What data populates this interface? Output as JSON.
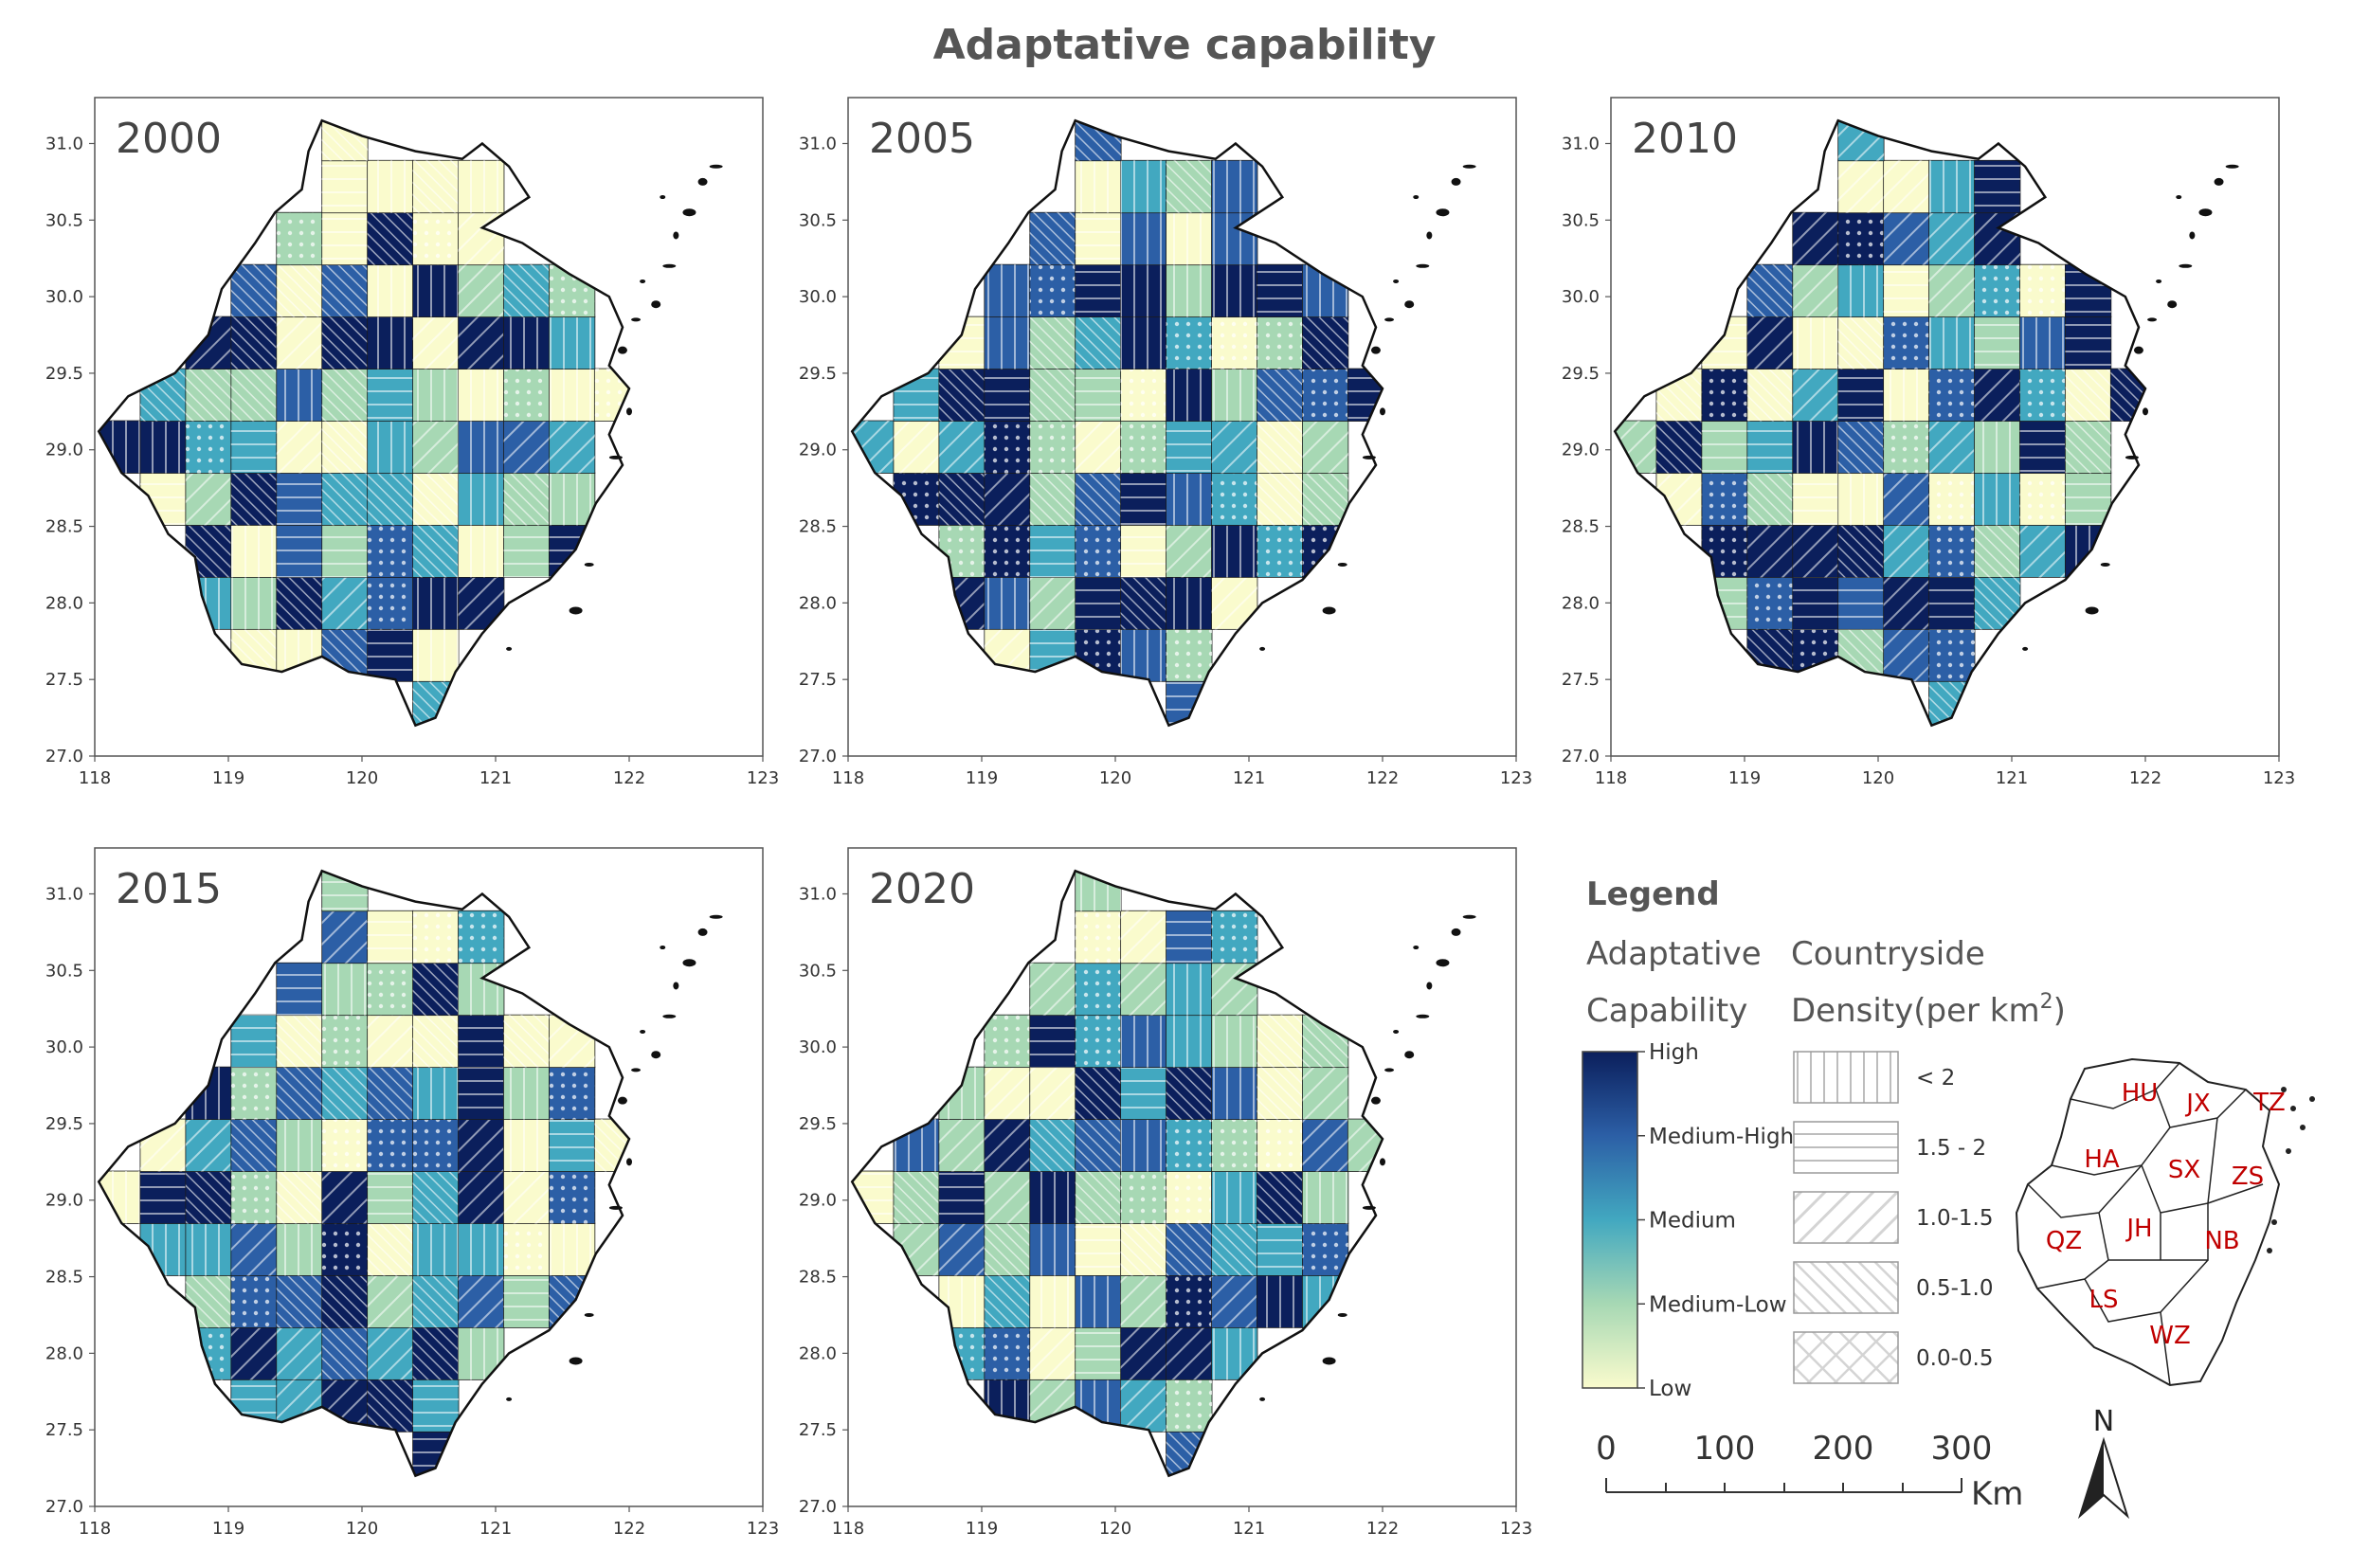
{
  "title": "Adaptative capability",
  "panels": [
    {
      "year": "2000",
      "seed": 11
    },
    {
      "year": "2005",
      "seed": 23
    },
    {
      "year": "2010",
      "seed": 37
    },
    {
      "year": "2015",
      "seed": 53
    },
    {
      "year": "2020",
      "seed": 71
    }
  ],
  "axes": {
    "x_ticks": [
      "118",
      "119",
      "120",
      "121",
      "122",
      "123"
    ],
    "y_ticks": [
      "31.0",
      "30.5",
      "30.0",
      "29.5",
      "29.0",
      "28.5",
      "28.0",
      "27.5",
      "27.0"
    ],
    "xlim": [
      118,
      123
    ],
    "ylim": [
      27.0,
      31.3
    ]
  },
  "legend": {
    "title": "Legend",
    "capability_heading": [
      "Adaptative",
      "Capability"
    ],
    "density_heading": [
      "Countryside",
      "Density(per km",
      "2",
      ")"
    ],
    "colorbar_labels": [
      "High",
      "Medium-High",
      "Medium",
      "Medium-Low",
      "Low"
    ],
    "colors": [
      "#0b1f5c",
      "#2c5fa6",
      "#42a8c0",
      "#a7d8b4",
      "#fafbcd"
    ],
    "density_classes": [
      {
        "label": "< 2",
        "pattern": "vertical"
      },
      {
        "label": "1.5 - 2",
        "pattern": "horizontal"
      },
      {
        "label": "1.0-1.5",
        "pattern": "diag-wide"
      },
      {
        "label": "0.5-1.0",
        "pattern": "diag-dense"
      },
      {
        "label": "0.0-0.5",
        "pattern": "cross"
      }
    ]
  },
  "scale_bar": {
    "labels": [
      "0",
      "100",
      "200",
      "300"
    ],
    "unit": "Km"
  },
  "north_arrow": {
    "label": "N"
  },
  "inset": {
    "cities": [
      "HU",
      "JX",
      "TZ",
      "HA",
      "SX",
      "ZS",
      "QZ",
      "JH",
      "NB",
      "LS",
      "WZ"
    ],
    "label_color": "#c00000"
  }
}
